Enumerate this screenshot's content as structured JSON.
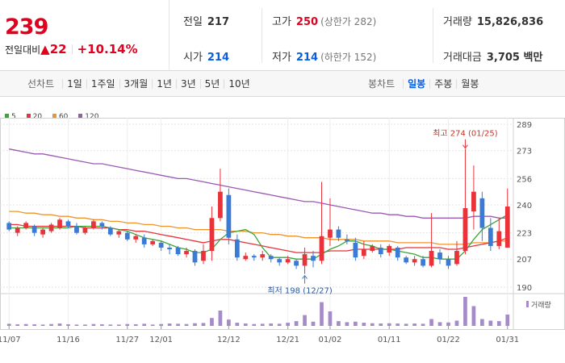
{
  "summary": {
    "price": "239",
    "change_label": "전일대비",
    "change_symbol": "▲",
    "change_value": "22",
    "change_percent": "+10.14%"
  },
  "info": {
    "prev_label": "전일",
    "prev_value": "217",
    "high_label": "고가",
    "high_value": "250",
    "upper_limit": "(상한가 282)",
    "volume_label": "거래량",
    "volume_value": "15,826,836",
    "open_label": "시가",
    "open_value": "214",
    "low_label": "저가",
    "low_value": "214",
    "lower_limit": "(하한가 152)",
    "amount_label": "거래대금",
    "amount_value": "3,705 백만"
  },
  "toolbar": {
    "line_label": "선차트",
    "line_periods": [
      "1일",
      "1주일",
      "3개월",
      "1년",
      "3년",
      "5년",
      "10년"
    ],
    "candle_label": "봉차트",
    "candle_periods": [
      "일봉",
      "주봉",
      "월봉"
    ],
    "candle_active": "일봉"
  },
  "colors": {
    "up": "#e8333b",
    "down": "#3a7bd5",
    "ma5": "#3aa63a",
    "ma20": "#e8333b",
    "ma60": "#f0932b",
    "ma120": "#9b59b6",
    "volume": "#a58bc8"
  },
  "chart_data": {
    "type": "candlestick",
    "legend": [
      {
        "name": "5",
        "color": "#3aa63a"
      },
      {
        "name": "20",
        "color": "#e8333b"
      },
      {
        "name": "60",
        "color": "#f0932b"
      },
      {
        "name": "120",
        "color": "#9b59b6"
      }
    ],
    "y_ticks": [
      289,
      273,
      256,
      240,
      223,
      207,
      190
    ],
    "ylim": [
      187,
      292
    ],
    "x_labels": [
      {
        "i": 0,
        "text": "11/07"
      },
      {
        "i": 7,
        "text": "11/16"
      },
      {
        "i": 14,
        "text": "11/27"
      },
      {
        "i": 18,
        "text": "12/01"
      },
      {
        "i": 26,
        "text": "12/12"
      },
      {
        "i": 33,
        "text": "12/21"
      },
      {
        "i": 38,
        "text": "01/02"
      },
      {
        "i": 45,
        "text": "01/11"
      },
      {
        "i": 52,
        "text": "01/22"
      },
      {
        "i": 59,
        "text": "01/31"
      }
    ],
    "annotations": {
      "high": {
        "i": 54,
        "value": 274,
        "text": "최고 274 (01/25)"
      },
      "low": {
        "i": 35,
        "value": 198,
        "text": "최저 198 (12/27)"
      }
    },
    "volume_label": "거래량",
    "candles": [
      [
        229,
        225,
        230,
        224
      ],
      [
        223,
        226,
        227,
        221
      ],
      [
        226,
        229,
        230,
        225
      ],
      [
        227,
        223,
        228,
        221
      ],
      [
        222,
        225,
        226,
        220
      ],
      [
        224,
        228,
        229,
        223
      ],
      [
        226,
        231,
        232,
        225
      ],
      [
        230,
        227,
        231,
        226
      ],
      [
        227,
        223,
        229,
        222
      ],
      [
        223,
        226,
        227,
        222
      ],
      [
        226,
        230,
        231,
        225
      ],
      [
        229,
        227,
        230,
        225
      ],
      [
        226,
        222,
        227,
        221
      ],
      [
        222,
        224,
        225,
        220
      ],
      [
        223,
        219,
        224,
        218
      ],
      [
        219,
        221,
        222,
        217
      ],
      [
        220,
        216,
        222,
        214
      ],
      [
        216,
        218,
        219,
        215
      ],
      [
        217,
        214,
        218,
        212
      ],
      [
        214,
        213,
        216,
        210
      ],
      [
        214,
        210,
        215,
        209
      ],
      [
        210,
        212,
        214,
        208
      ],
      [
        212,
        205,
        213,
        203
      ],
      [
        206,
        212,
        216,
        204
      ],
      [
        212,
        232,
        239,
        206
      ],
      [
        232,
        248,
        262,
        230
      ],
      [
        246,
        220,
        250,
        216
      ],
      [
        219,
        208,
        222,
        206
      ],
      [
        207,
        209,
        211,
        206
      ],
      [
        209,
        208,
        210,
        206
      ],
      [
        208,
        210,
        212,
        206
      ],
      [
        209,
        207,
        210,
        205
      ],
      [
        207,
        205,
        208,
        203
      ],
      [
        205,
        207,
        209,
        204
      ],
      [
        206,
        203,
        207,
        201
      ],
      [
        203,
        210,
        214,
        198
      ],
      [
        209,
        206,
        212,
        202
      ],
      [
        206,
        221,
        254,
        204
      ],
      [
        220,
        225,
        244,
        215
      ],
      [
        225,
        220,
        227,
        218
      ],
      [
        219,
        218,
        222,
        216
      ],
      [
        217,
        208,
        220,
        206
      ],
      [
        209,
        213,
        218,
        207
      ],
      [
        212,
        215,
        216,
        211
      ],
      [
        214,
        210,
        216,
        208
      ],
      [
        211,
        215,
        216,
        209
      ],
      [
        214,
        208,
        215,
        206
      ],
      [
        208,
        205,
        209,
        204
      ],
      [
        205,
        207,
        209,
        203
      ],
      [
        207,
        203,
        209,
        202
      ],
      [
        203,
        212,
        235,
        202
      ],
      [
        211,
        207,
        213,
        204
      ],
      [
        207,
        203,
        209,
        201
      ],
      [
        204,
        212,
        218,
        203
      ],
      [
        212,
        238,
        274,
        210
      ],
      [
        236,
        248,
        264,
        225
      ],
      [
        244,
        226,
        248,
        218
      ],
      [
        226,
        215,
        232,
        212
      ],
      [
        215,
        224,
        232,
        213
      ],
      [
        214,
        239,
        250,
        214
      ]
    ],
    "ma5": [
      226,
      226,
      226,
      226,
      226,
      226,
      226,
      226,
      227,
      227,
      227,
      227,
      226,
      225,
      224,
      222,
      220,
      219,
      218,
      216,
      214,
      213,
      211,
      211,
      213,
      219,
      223,
      224,
      225,
      222,
      214,
      208,
      208,
      208,
      207,
      207,
      207,
      210,
      213,
      215,
      218,
      218,
      216,
      215,
      213,
      213,
      212,
      211,
      210,
      208,
      208,
      207,
      207,
      207,
      212,
      219,
      225,
      228,
      231,
      234
    ],
    "ma20": [
      228,
      228,
      227,
      227,
      227,
      227,
      227,
      227,
      227,
      226,
      226,
      226,
      226,
      225,
      225,
      224,
      224,
      223,
      222,
      221,
      220,
      219,
      218,
      217,
      218,
      219,
      219,
      218,
      217,
      216,
      215,
      214,
      213,
      212,
      211,
      211,
      211,
      211,
      212,
      212,
      212,
      213,
      213,
      213,
      213,
      213,
      213,
      214,
      214,
      214,
      214,
      214,
      213,
      213,
      214,
      215,
      216,
      217,
      218,
      220
    ],
    "ma60": [
      236,
      236,
      235,
      235,
      234,
      234,
      233,
      233,
      232,
      232,
      231,
      231,
      230,
      230,
      229,
      229,
      228,
      228,
      227,
      227,
      226,
      226,
      225,
      225,
      225,
      225,
      224,
      224,
      224,
      223,
      223,
      222,
      222,
      221,
      221,
      220,
      220,
      220,
      219,
      219,
      219,
      219,
      218,
      218,
      218,
      218,
      217,
      217,
      217,
      217,
      217,
      216,
      216,
      216,
      216,
      217,
      217,
      217,
      218,
      218
    ],
    "ma120": [
      274,
      273,
      272,
      271,
      271,
      270,
      269,
      268,
      267,
      266,
      265,
      265,
      264,
      263,
      262,
      261,
      260,
      259,
      258,
      257,
      256,
      256,
      255,
      254,
      253,
      252,
      251,
      250,
      249,
      248,
      247,
      246,
      245,
      244,
      243,
      242,
      242,
      241,
      240,
      239,
      238,
      237,
      236,
      235,
      235,
      234,
      234,
      233,
      233,
      232,
      232,
      232,
      232,
      232,
      232,
      233,
      233,
      233,
      232,
      232
    ],
    "volume": [
      0.8,
      0.6,
      0.7,
      0.6,
      0.5,
      0.7,
      0.9,
      0.6,
      0.5,
      0.5,
      0.7,
      0.6,
      0.5,
      0.5,
      0.7,
      0.6,
      0.8,
      0.5,
      0.7,
      0.9,
      0.8,
      0.7,
      1.0,
      1.1,
      3.0,
      5.8,
      2.4,
      1.2,
      0.9,
      0.7,
      0.8,
      0.9,
      0.8,
      1.2,
      1.8,
      4.1,
      1.6,
      9.0,
      5.5,
      1.8,
      1.4,
      1.6,
      1.2,
      1.0,
      0.9,
      1.0,
      0.9,
      0.8,
      0.9,
      0.8,
      2.6,
      1.4,
      1.3,
      2.0,
      11.0,
      7.5,
      2.6,
      2.0,
      1.8,
      4.3
    ]
  }
}
